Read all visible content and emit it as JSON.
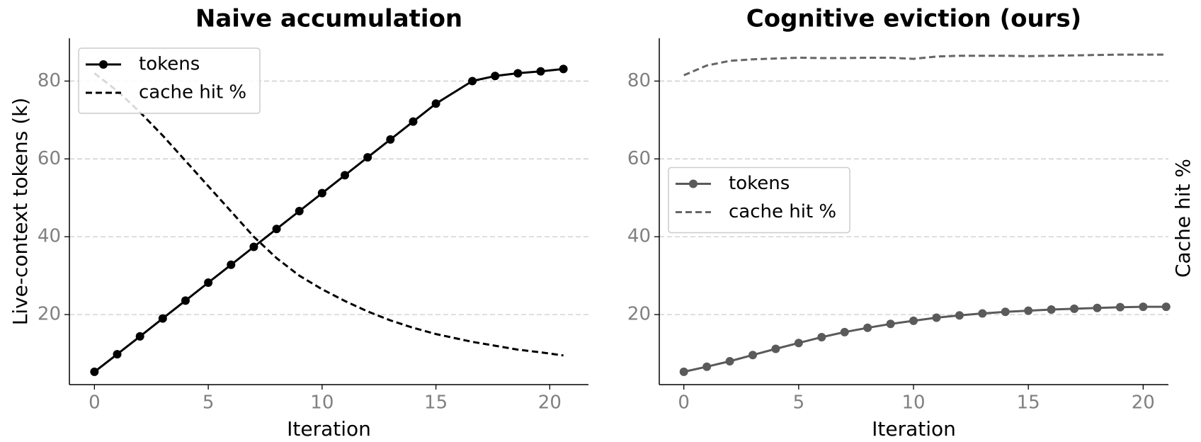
{
  "chart_data": [
    {
      "type": "line",
      "title": "Naive accumulation",
      "xlabel": "Iteration",
      "ylabel": "Live-context tokens (k)",
      "xlim": [
        -1.1,
        21.7
      ],
      "xticks": [
        0,
        5,
        10,
        15,
        20
      ],
      "ylim": [
        2,
        91
      ],
      "yticks": [
        20,
        40,
        60,
        80
      ],
      "grid": true,
      "legend": "upper left",
      "x": [
        0,
        1,
        2,
        3,
        4,
        5,
        6,
        7,
        8,
        9,
        10,
        11,
        12,
        13,
        14,
        15,
        16.6,
        17.6,
        18.6,
        19.6,
        20.6
      ],
      "series": [
        {
          "name": "tokens",
          "color": "#000000",
          "dash": "solid",
          "marker": "o",
          "values": [
            5.3,
            9.8,
            14.4,
            19.0,
            23.6,
            28.2,
            32.8,
            37.4,
            42.0,
            46.6,
            51.2,
            55.8,
            60.4,
            65.0,
            69.6,
            74.2,
            80.0,
            81.3,
            82.0,
            82.5,
            83.1
          ]
        },
        {
          "name": "cache hit %",
          "color": "#000000",
          "dash": "dashed",
          "marker": "none",
          "values": [
            82,
            77.5,
            72,
            66,
            59.5,
            53,
            46.5,
            40,
            34.5,
            30,
            26.5,
            23.5,
            20.8,
            18.5,
            16.6,
            15,
            13,
            12,
            11,
            10.3,
            9.5
          ]
        }
      ]
    },
    {
      "type": "line",
      "title": "Cognitive eviction (ours)",
      "xlabel": "Iteration",
      "ylabel_right": "Cache hit %",
      "xlim": [
        -1.07,
        21.1
      ],
      "xticks": [
        0,
        5,
        10,
        15,
        20
      ],
      "ylim": [
        2,
        91
      ],
      "yticks": [
        20,
        40,
        60,
        80
      ],
      "grid": true,
      "legend": "center left",
      "x": [
        0,
        1,
        2,
        3,
        4,
        5,
        6,
        7,
        8,
        9,
        10,
        11,
        12,
        13,
        14,
        15,
        16,
        17,
        18,
        19,
        20,
        21
      ],
      "series": [
        {
          "name": "tokens",
          "color": "#5a5a5a",
          "dash": "solid",
          "marker": "o",
          "values": [
            5.3,
            6.6,
            8.0,
            9.6,
            11.2,
            12.7,
            14.2,
            15.5,
            16.6,
            17.6,
            18.4,
            19.2,
            19.8,
            20.3,
            20.7,
            21.0,
            21.3,
            21.5,
            21.7,
            21.9,
            22.0,
            22.0
          ]
        },
        {
          "name": "cache hit %",
          "color": "#666666",
          "dash": "dashed",
          "marker": "none",
          "values": [
            81.5,
            84,
            85.2,
            85.6,
            85.8,
            86,
            85.9,
            85.9,
            86,
            86,
            85.7,
            86.3,
            86.5,
            86.5,
            86.5,
            86.4,
            86.5,
            86.6,
            86.7,
            86.8,
            86.8,
            86.8
          ]
        }
      ]
    }
  ]
}
